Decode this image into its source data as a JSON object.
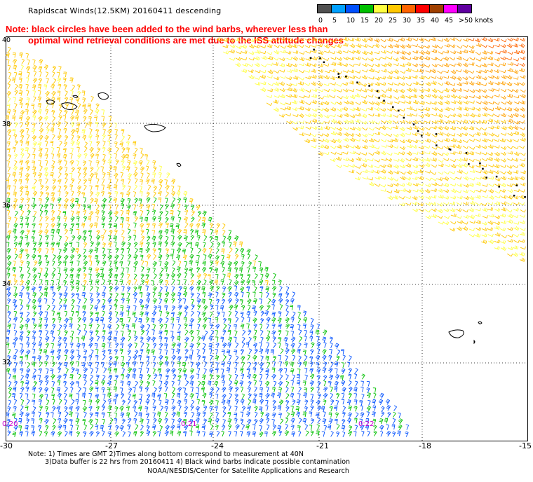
{
  "title": "Rapidscat Winds(12.5KM) 20160411 descending",
  "notes": [
    "Note: black circles have been added to the wind barbs, wherever less than",
    "optimal wind retrieval conditions are met due to the ISS attitude changes"
  ],
  "colorbar": {
    "labels": [
      "0",
      "5",
      "10",
      "15",
      "20",
      "25",
      "30",
      "35",
      "40",
      "45",
      ">50 knots"
    ],
    "colors": [
      "#505050",
      "#00a0ff",
      "#0050ff",
      "#00c000",
      "#ffff40",
      "#ffc800",
      "#ff6400",
      "#ff0000",
      "#a04000",
      "#ff00ff",
      "#6000a0"
    ]
  },
  "longitude_labels": [
    "-30",
    "-27",
    "-24",
    "-21",
    "-18",
    "-15"
  ],
  "latitude_labels": [
    "40",
    "38",
    "36",
    "34",
    "32"
  ],
  "time_labels": [
    "0:20",
    "0:21",
    "0:22"
  ],
  "footnotes": [
    "Note: 1) Times are GMT 2)Times along bottom correspond to measurement at 40N",
    "3)Data buffer is 22 hrs from 20160411 4) Black wind barbs indicate possible contamination",
    "NOAA/NESDIS/Center for Satellite Applications and Research"
  ],
  "map": {
    "lon_range": [
      -30,
      -15
    ],
    "lat_range": [
      30,
      40
    ],
    "grid_lines": "dotted",
    "islands": [
      "Azores",
      "Madeira"
    ]
  }
}
